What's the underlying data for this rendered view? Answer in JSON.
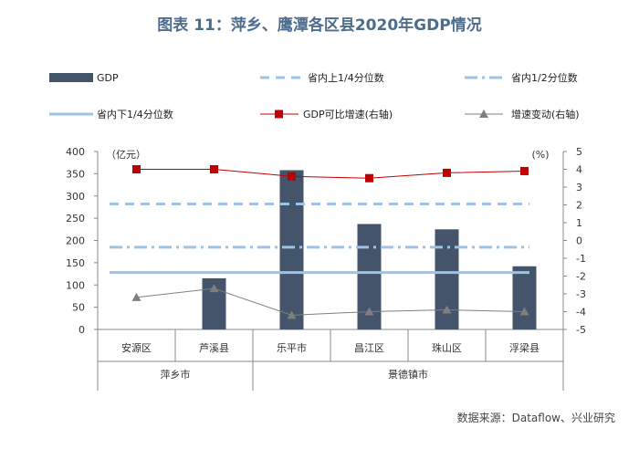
{
  "figure": {
    "title": "图表 11：萍乡、鹰潭各区县2020年GDP情况",
    "source": "数据来源：Dataflow、兴业研究"
  },
  "colors": {
    "bar": "#44546a",
    "quartile": "#9dc3e6",
    "median": "#9dc3e6",
    "lower": "#9dc3e6",
    "growth": "#c00000",
    "change": "#7f7f7f"
  },
  "chart_data": {
    "type": "bar",
    "categories": [
      "安源区",
      "芦溪县",
      "乐平市",
      "昌江区",
      "珠山区",
      "浮梁县"
    ],
    "groups": [
      {
        "label": "萍乡市",
        "span": [
          0,
          1
        ]
      },
      {
        "label": "景德镇市",
        "span": [
          2,
          5
        ]
      }
    ],
    "left_axis": {
      "unit": "（亿元）",
      "ylim": [
        0,
        400
      ],
      "ticks": [
        "0",
        "50",
        "100",
        "150",
        "200",
        "250",
        "300",
        "350",
        "400"
      ]
    },
    "right_axis": {
      "unit": "(%)",
      "ylim": [
        -5,
        5
      ],
      "ticks": [
        "-5",
        "-4",
        "-3",
        "-2",
        "-1",
        "0",
        "1",
        "2",
        "3",
        "4",
        "5"
      ]
    },
    "series": [
      {
        "name": "GDP",
        "type": "bar",
        "axis": "left",
        "values": [
          null,
          115,
          358,
          237,
          225,
          142
        ]
      },
      {
        "name": "省内上1/4分位数",
        "type": "hline",
        "axis": "left",
        "value": 282
      },
      {
        "name": "省内1/2分位数",
        "type": "hline",
        "axis": "left",
        "value": 185
      },
      {
        "name": "省内下1/4分位数",
        "type": "hline",
        "axis": "left",
        "value": 128
      },
      {
        "name": "GDP可比增速(右轴)",
        "type": "line",
        "axis": "right",
        "values": [
          4.0,
          4.0,
          3.6,
          3.5,
          3.8,
          3.9
        ]
      },
      {
        "name": "增速变动(右轴)",
        "type": "line",
        "axis": "right",
        "values": [
          -3.2,
          -2.7,
          -4.2,
          -4.0,
          -3.9,
          -4.0
        ]
      }
    ],
    "legend": {
      "position": "top"
    }
  }
}
